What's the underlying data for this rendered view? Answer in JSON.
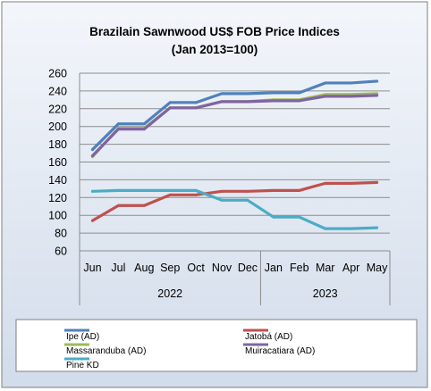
{
  "chart_data": {
    "type": "line",
    "title": "Brazilain Sawnwood US$ FOB Price Indices",
    "subtitle": "(Jan 2013=100)",
    "categories": [
      "Jun",
      "Jul",
      "Aug",
      "Sep",
      "Oct",
      "Nov",
      "Dec",
      "Jan",
      "Feb",
      "Mar",
      "Apr",
      "May"
    ],
    "groups": [
      {
        "label": "2022",
        "span": 7
      },
      {
        "label": "2023",
        "span": 5
      }
    ],
    "ylim": [
      60,
      260
    ],
    "yticks": [
      60,
      80,
      100,
      120,
      140,
      160,
      180,
      200,
      220,
      240,
      260
    ],
    "grid": true,
    "legend_position": "bottom",
    "series": [
      {
        "name": "Ipe (AD)",
        "color": "#4f81bd",
        "values": [
          174,
          203,
          203,
          227,
          227,
          237,
          237,
          238,
          238,
          249,
          249,
          251
        ]
      },
      {
        "name": "Jatobá (AD)",
        "color": "#c0504d",
        "values": [
          94,
          111,
          111,
          123,
          123,
          127,
          127,
          128,
          128,
          136,
          136,
          137
        ]
      },
      {
        "name": "Massaranduba (AD)",
        "color": "#9bbb59",
        "values": [
          166,
          198,
          198,
          221,
          221,
          228,
          228,
          230,
          230,
          236,
          236,
          237
        ]
      },
      {
        "name": "Muiracatiara (AD)",
        "color": "#8064a2",
        "values": [
          167,
          197,
          197,
          221,
          221,
          228,
          228,
          229,
          229,
          234,
          234,
          235
        ]
      },
      {
        "name": "Pine KD",
        "color": "#4bacc6",
        "values": [
          127,
          128,
          128,
          128,
          128,
          117,
          117,
          98,
          98,
          85,
          85,
          86
        ]
      }
    ]
  }
}
